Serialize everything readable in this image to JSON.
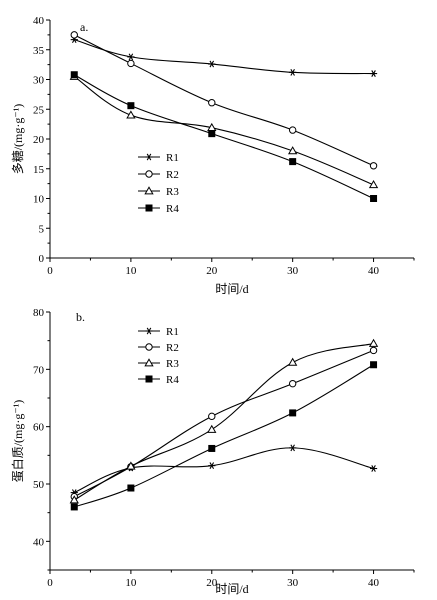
{
  "chart_data": [
    {
      "type": "line",
      "panel_label": "a.",
      "xlabel": "时间/d",
      "ylabel": "多糖/(mg·g⁻¹)",
      "xlim": [
        0,
        45
      ],
      "ylim": [
        0,
        40
      ],
      "xticks": [
        0,
        10,
        20,
        30,
        40
      ],
      "yticks": [
        0,
        5,
        10,
        15,
        20,
        25,
        30,
        35,
        40
      ],
      "legend_position": "center",
      "grid": false,
      "x": [
        3,
        10,
        20,
        30,
        40
      ],
      "series": [
        {
          "name": "R1",
          "marker": "asterisk",
          "values": [
            36.7,
            33.8,
            32.6,
            31.2,
            31.0
          ]
        },
        {
          "name": "R2",
          "marker": "open-circle",
          "values": [
            37.5,
            32.7,
            26.1,
            21.5,
            15.5
          ]
        },
        {
          "name": "R3",
          "marker": "open-triangle",
          "values": [
            30.5,
            24.0,
            21.9,
            18.0,
            12.3
          ]
        },
        {
          "name": "R4",
          "marker": "filled-square",
          "values": [
            30.8,
            25.6,
            20.9,
            16.2,
            10.0
          ]
        }
      ]
    },
    {
      "type": "line",
      "panel_label": "b.",
      "xlabel": "时间/d",
      "ylabel": "蛋白质/(mg·g⁻¹)",
      "xlim": [
        0,
        45
      ],
      "ylim": [
        35,
        80
      ],
      "xticks": [
        0,
        10,
        20,
        30,
        40
      ],
      "yticks": [
        40,
        50,
        60,
        70,
        80
      ],
      "legend_position": "top-left",
      "grid": false,
      "x": [
        3,
        10,
        20,
        30,
        40
      ],
      "series": [
        {
          "name": "R1",
          "marker": "asterisk",
          "values": [
            48.5,
            52.8,
            53.2,
            56.3,
            52.7
          ]
        },
        {
          "name": "R2",
          "marker": "open-circle",
          "values": [
            47.8,
            53.0,
            61.8,
            67.5,
            73.3
          ]
        },
        {
          "name": "R3",
          "marker": "open-triangle",
          "values": [
            47.2,
            53.1,
            59.5,
            71.2,
            74.5
          ]
        },
        {
          "name": "R4",
          "marker": "filled-square",
          "values": [
            46.0,
            49.3,
            56.2,
            62.4,
            70.8
          ]
        }
      ]
    }
  ]
}
